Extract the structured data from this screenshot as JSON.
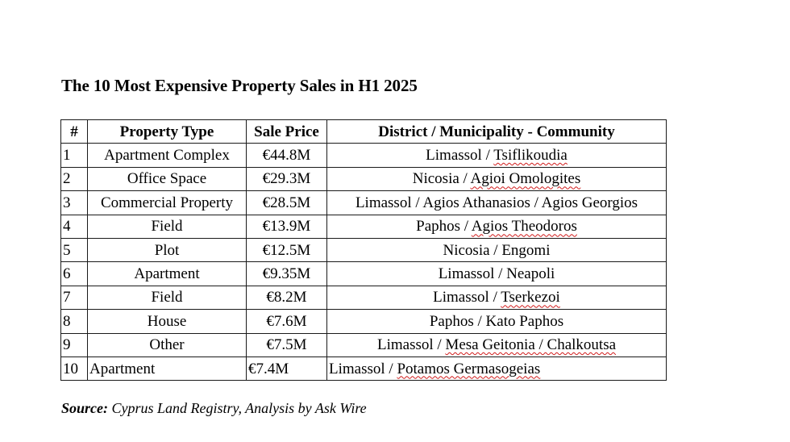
{
  "title": "The 10 Most Expensive Property Sales in H1 2025",
  "table": {
    "headers": {
      "num": "#",
      "type": "Property Type",
      "price": "Sale Price",
      "location": "District / Municipality - Community"
    },
    "rows": [
      {
        "num": "1",
        "type": "Apartment Complex",
        "price": "€44.8M",
        "district": "Limassol",
        "community": "Tsiflikoudia"
      },
      {
        "num": "2",
        "type": "Office Space",
        "price": "€29.3M",
        "district": "Nicosia",
        "community": "Agioi Omologites"
      },
      {
        "num": "3",
        "type": "Commercial Property",
        "price": "€28.5M",
        "district": "Limassol",
        "community": "Agios Athanasios / Agios Georgios"
      },
      {
        "num": "4",
        "type": "Field",
        "price": "€13.9M",
        "district": "Paphos",
        "community": "Agios Theodoros"
      },
      {
        "num": "5",
        "type": "Plot",
        "price": "€12.5M",
        "district": "Nicosia",
        "community": "Engomi"
      },
      {
        "num": "6",
        "type": "Apartment",
        "price": "€9.35M",
        "district": "Limassol",
        "community": "Neapoli"
      },
      {
        "num": "7",
        "type": "Field",
        "price": "€8.2M",
        "district": "Limassol",
        "community": "Tserkezoi"
      },
      {
        "num": "8",
        "type": "House",
        "price": "€7.6M",
        "district": "Paphos",
        "community": "Kato Paphos"
      },
      {
        "num": "9",
        "type": "Other",
        "price": "€7.5M",
        "district": "Limassol",
        "community": "Mesa Geitonia / Chalkoutsa"
      },
      {
        "num": "10",
        "type": "Apartment",
        "price": "€7.4M",
        "district": "Limassol",
        "community": "Potamos Germasogeias"
      }
    ]
  },
  "source": {
    "label": "Source:",
    "text": "Cyprus Land Registry, Analysis by Ask Wire"
  },
  "colors": {
    "text": "#000000",
    "border": "#1a1a1a",
    "spellcheck_underline": "#d11c1c"
  }
}
